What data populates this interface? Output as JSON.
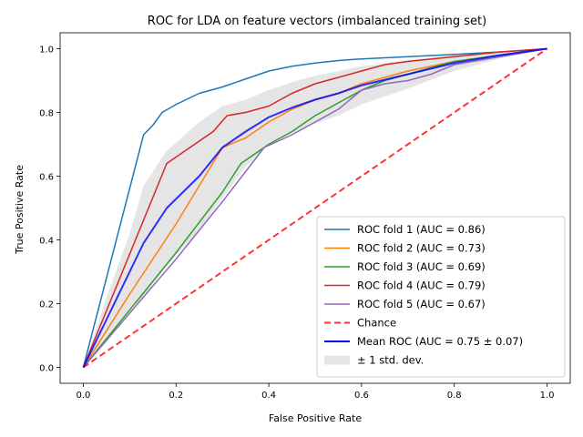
{
  "chart_data": {
    "type": "line",
    "title": "ROC for LDA on feature vectors (imbalanced training set)",
    "xlabel": "False Positive Rate",
    "ylabel": "True Positive Rate",
    "xlim": [
      -0.05,
      1.05
    ],
    "ylim": [
      -0.05,
      1.05
    ],
    "xticks": [
      "0.0",
      "0.2",
      "0.4",
      "0.6",
      "0.8",
      "1.0"
    ],
    "yticks": [
      "0.0",
      "0.2",
      "0.4",
      "0.6",
      "0.8",
      "1.0"
    ],
    "grid": false,
    "legend_position": "lower-right",
    "series": [
      {
        "name": "ROC fold 1 (AUC = 0.86)",
        "color": "#1f77b4",
        "points": [
          [
            0,
            0
          ],
          [
            0.13,
            0.73
          ],
          [
            0.15,
            0.76
          ],
          [
            0.17,
            0.8
          ],
          [
            0.2,
            0.825
          ],
          [
            0.25,
            0.86
          ],
          [
            0.3,
            0.88
          ],
          [
            0.35,
            0.905
          ],
          [
            0.4,
            0.93
          ],
          [
            0.45,
            0.945
          ],
          [
            0.5,
            0.955
          ],
          [
            0.55,
            0.963
          ],
          [
            0.6,
            0.968
          ],
          [
            0.7,
            0.975
          ],
          [
            0.8,
            0.982
          ],
          [
            0.9,
            0.99
          ],
          [
            1.0,
            1.0
          ]
        ]
      },
      {
        "name": "ROC fold 2 (AUC = 0.73)",
        "color": "#ff7f0e",
        "points": [
          [
            0,
            0
          ],
          [
            0.1,
            0.23
          ],
          [
            0.2,
            0.45
          ],
          [
            0.3,
            0.69
          ],
          [
            0.35,
            0.72
          ],
          [
            0.4,
            0.77
          ],
          [
            0.45,
            0.81
          ],
          [
            0.5,
            0.84
          ],
          [
            0.55,
            0.86
          ],
          [
            0.6,
            0.89
          ],
          [
            0.7,
            0.93
          ],
          [
            0.8,
            0.96
          ],
          [
            0.9,
            0.98
          ],
          [
            1.0,
            1.0
          ]
        ]
      },
      {
        "name": "ROC fold 3 (AUC = 0.69)",
        "color": "#2ca02c",
        "points": [
          [
            0,
            0
          ],
          [
            0.1,
            0.18
          ],
          [
            0.2,
            0.36
          ],
          [
            0.3,
            0.55
          ],
          [
            0.34,
            0.64
          ],
          [
            0.4,
            0.7
          ],
          [
            0.45,
            0.74
          ],
          [
            0.5,
            0.79
          ],
          [
            0.55,
            0.83
          ],
          [
            0.6,
            0.87
          ],
          [
            0.65,
            0.9
          ],
          [
            0.7,
            0.92
          ],
          [
            0.75,
            0.94
          ],
          [
            0.8,
            0.96
          ],
          [
            0.9,
            0.98
          ],
          [
            1.0,
            1.0
          ]
        ]
      },
      {
        "name": "ROC fold 4 (AUC = 0.79)",
        "color": "#d62728",
        "points": [
          [
            0,
            0
          ],
          [
            0.18,
            0.64
          ],
          [
            0.28,
            0.74
          ],
          [
            0.31,
            0.79
          ],
          [
            0.35,
            0.8
          ],
          [
            0.4,
            0.82
          ],
          [
            0.45,
            0.86
          ],
          [
            0.5,
            0.89
          ],
          [
            0.55,
            0.91
          ],
          [
            0.6,
            0.93
          ],
          [
            0.65,
            0.95
          ],
          [
            0.7,
            0.96
          ],
          [
            0.8,
            0.975
          ],
          [
            0.9,
            0.99
          ],
          [
            1.0,
            1.0
          ]
        ]
      },
      {
        "name": "ROC fold 5 (AUC = 0.67)",
        "color": "#9467bd",
        "points": [
          [
            0,
            0
          ],
          [
            0.1,
            0.17
          ],
          [
            0.2,
            0.34
          ],
          [
            0.3,
            0.52
          ],
          [
            0.39,
            0.69
          ],
          [
            0.45,
            0.73
          ],
          [
            0.5,
            0.77
          ],
          [
            0.55,
            0.81
          ],
          [
            0.6,
            0.87
          ],
          [
            0.65,
            0.89
          ],
          [
            0.7,
            0.9
          ],
          [
            0.75,
            0.92
          ],
          [
            0.8,
            0.95
          ],
          [
            0.9,
            0.975
          ],
          [
            1.0,
            1.0
          ]
        ]
      },
      {
        "name": "Chance",
        "color": "#ff0000",
        "dashed": true,
        "points": [
          [
            0,
            0
          ],
          [
            1,
            1
          ]
        ]
      },
      {
        "name": "Mean ROC (AUC = 0.75 ± 0.07)",
        "color": "#0000ff",
        "points": [
          [
            0,
            0
          ],
          [
            0.05,
            0.15
          ],
          [
            0.1,
            0.3
          ],
          [
            0.13,
            0.39
          ],
          [
            0.18,
            0.5
          ],
          [
            0.25,
            0.6
          ],
          [
            0.3,
            0.69
          ],
          [
            0.35,
            0.74
          ],
          [
            0.4,
            0.785
          ],
          [
            0.45,
            0.815
          ],
          [
            0.5,
            0.84
          ],
          [
            0.55,
            0.86
          ],
          [
            0.6,
            0.885
          ],
          [
            0.7,
            0.92
          ],
          [
            0.8,
            0.955
          ],
          [
            0.9,
            0.98
          ],
          [
            1.0,
            1.0
          ]
        ]
      }
    ],
    "band": {
      "name": "± 1 std. dev.",
      "color": "#bfbfbf",
      "upper": [
        [
          0,
          0
        ],
        [
          0.05,
          0.22
        ],
        [
          0.1,
          0.42
        ],
        [
          0.13,
          0.57
        ],
        [
          0.18,
          0.68
        ],
        [
          0.25,
          0.77
        ],
        [
          0.3,
          0.82
        ],
        [
          0.35,
          0.84
        ],
        [
          0.4,
          0.87
        ],
        [
          0.45,
          0.895
        ],
        [
          0.5,
          0.915
        ],
        [
          0.55,
          0.93
        ],
        [
          0.6,
          0.945
        ],
        [
          0.7,
          0.965
        ],
        [
          0.8,
          0.98
        ],
        [
          0.9,
          0.99
        ],
        [
          1.0,
          1.0
        ]
      ],
      "lower": [
        [
          0,
          0
        ],
        [
          0.05,
          0.08
        ],
        [
          0.1,
          0.18
        ],
        [
          0.13,
          0.22
        ],
        [
          0.18,
          0.32
        ],
        [
          0.25,
          0.43
        ],
        [
          0.3,
          0.53
        ],
        [
          0.35,
          0.63
        ],
        [
          0.4,
          0.7
        ],
        [
          0.45,
          0.735
        ],
        [
          0.5,
          0.765
        ],
        [
          0.55,
          0.79
        ],
        [
          0.6,
          0.825
        ],
        [
          0.7,
          0.875
        ],
        [
          0.8,
          0.93
        ],
        [
          0.9,
          0.97
        ],
        [
          1.0,
          1.0
        ]
      ]
    }
  }
}
